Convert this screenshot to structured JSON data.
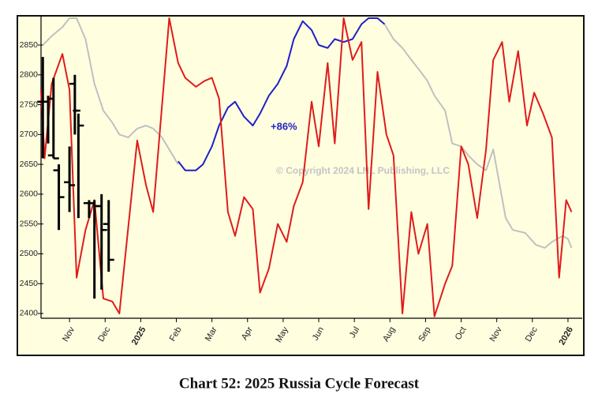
{
  "chart_data": {
    "type": "line",
    "title": "Chart 52: 2025 Russia Cycle Forecast",
    "annotations": [
      "+86%",
      "© Copyright 2024 LNL Publishing, LLC"
    ],
    "xlim": [
      0.2,
      15.4
    ],
    "ylim": [
      2392,
      2899
    ],
    "yticks": [
      2400,
      2450,
      2500,
      2550,
      2600,
      2650,
      2700,
      2750,
      2800,
      2850
    ],
    "xticks": [
      {
        "value": 1,
        "label": "Nov"
      },
      {
        "value": 2,
        "label": "Dec"
      },
      {
        "value": 3,
        "label": "2025",
        "color": "#cc1111"
      },
      {
        "value": 4,
        "label": "Feb"
      },
      {
        "value": 5,
        "label": "Mar"
      },
      {
        "value": 6,
        "label": "Apr"
      },
      {
        "value": 7,
        "label": "May"
      },
      {
        "value": 8,
        "label": "Jun"
      },
      {
        "value": 9,
        "label": "Jul"
      },
      {
        "value": 10,
        "label": "Aug"
      },
      {
        "value": 11,
        "label": "Sep"
      },
      {
        "value": 12,
        "label": "Oct"
      },
      {
        "value": 13,
        "label": "Nov"
      },
      {
        "value": 14,
        "label": "Dec"
      },
      {
        "value": 15,
        "label": "2026",
        "color": "#cc1111"
      }
    ],
    "series": [
      {
        "type": "line",
        "color": "#c0c0c0",
        "x": [
          0.25,
          0.5,
          0.8,
          1.0,
          1.2,
          1.45,
          1.7,
          1.95,
          2.2,
          2.4,
          2.65,
          2.9,
          3.15,
          3.35,
          3.6,
          3.8,
          4.05,
          9.85,
          9.85,
          10.1,
          10.35,
          10.6,
          10.8,
          11.05,
          11.25,
          11.55,
          11.75,
          12.0,
          12.2,
          12.45,
          12.7,
          12.9,
          13.25,
          13.45,
          13.8,
          14.1,
          14.35,
          14.55,
          14.85,
          15.0,
          15.1
        ],
        "values": [
          2850,
          2865,
          2880,
          2895,
          2895,
          2860,
          2785,
          2740,
          2720,
          2700,
          2695,
          2710,
          2715,
          2710,
          2695,
          2675,
          2650,
          null,
          2885,
          2860,
          2845,
          2825,
          2810,
          2790,
          2765,
          2740,
          2685,
          2680,
          2665,
          2650,
          2640,
          2675,
          2560,
          2540,
          2535,
          2515,
          2510,
          2520,
          2530,
          2525,
          2510
        ]
      },
      {
        "type": "line",
        "color": "#1f1fc8",
        "x": [
          4.05,
          4.25,
          4.55,
          4.75,
          5.0,
          5.2,
          5.45,
          5.65,
          5.9,
          6.15,
          6.35,
          6.6,
          6.85,
          7.1,
          7.3,
          7.55,
          7.8,
          8.0,
          8.25,
          8.45,
          8.7,
          8.95,
          9.2,
          9.4,
          9.65,
          9.85
        ],
        "values": [
          2655,
          2640,
          2640,
          2650,
          2680,
          2715,
          2745,
          2755,
          2730,
          2715,
          2735,
          2765,
          2785,
          2815,
          2860,
          2890,
          2875,
          2850,
          2845,
          2860,
          2855,
          2860,
          2885,
          2895,
          2895,
          2885
        ]
      },
      {
        "type": "line",
        "color": "#e01b1b",
        "x": [
          0.2,
          0.3,
          0.5,
          0.8,
          1.0,
          1.2,
          1.45,
          1.7,
          1.95,
          2.2,
          2.4,
          2.9,
          3.15,
          3.35,
          3.8,
          4.05,
          4.25,
          4.55,
          4.8,
          5.0,
          5.2,
          5.45,
          5.65,
          5.9,
          6.15,
          6.35,
          6.6,
          6.85,
          7.1,
          7.3,
          7.55,
          7.8,
          8.0,
          8.25,
          8.45,
          8.7,
          8.95,
          9.2,
          9.4,
          9.65,
          9.9,
          10.1,
          10.35,
          10.6,
          10.8,
          11.05,
          11.25,
          11.55,
          11.75,
          12.0,
          12.2,
          12.45,
          12.7,
          12.9,
          13.15,
          13.35,
          13.6,
          13.85,
          14.05,
          14.3,
          14.55,
          14.75,
          14.95,
          15.1
        ],
        "values": [
          2775,
          2660,
          2785,
          2835,
          2775,
          2460,
          2540,
          2590,
          2425,
          2420,
          2400,
          2690,
          2615,
          2570,
          2895,
          2820,
          2795,
          2780,
          2790,
          2795,
          2760,
          2570,
          2530,
          2595,
          2575,
          2435,
          2475,
          2550,
          2520,
          2580,
          2620,
          2755,
          2680,
          2820,
          2685,
          2895,
          2825,
          2855,
          2575,
          2805,
          2700,
          2665,
          2400,
          2570,
          2500,
          2550,
          2395,
          2450,
          2480,
          2680,
          2650,
          2560,
          2675,
          2825,
          2855,
          2755,
          2840,
          2715,
          2770,
          2735,
          2695,
          2460,
          2590,
          2570
        ]
      },
      {
        "type": "ohlc",
        "color": "#000000",
        "x": [
          0.25,
          0.4,
          0.55,
          0.7,
          1.0,
          1.15,
          1.25,
          1.55,
          1.7,
          1.9,
          2.1
        ],
        "open": [
          2755,
          2755,
          2665,
          2640,
          2620,
          2785,
          2740,
          2585,
          2585,
          2580,
          2550
        ],
        "high": [
          2830,
          2765,
          2795,
          2650,
          2680,
          2800,
          2735,
          2590,
          2590,
          2600,
          2590
        ],
        "low": [
          2660,
          2685,
          2660,
          2540,
          2570,
          2700,
          2560,
          2560,
          2425,
          2440,
          2470
        ],
        "close": [
          2755,
          2760,
          2660,
          2595,
          2615,
          2740,
          2715,
          2585,
          2580,
          2540,
          2490
        ]
      }
    ]
  }
}
